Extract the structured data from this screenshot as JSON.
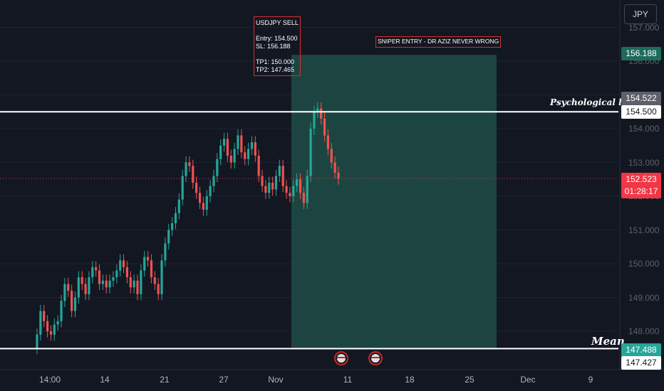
{
  "currency_label": "JPY",
  "y_ticks": [
    "157.000",
    "156.000",
    "155.000",
    "154.000",
    "153.000",
    "152.000",
    "151.000",
    "150.000",
    "149.000",
    "148.000"
  ],
  "x_ticks": [
    "14:00",
    "14",
    "21",
    "27",
    "Nov",
    "11",
    "18",
    "25",
    "Dec",
    "9"
  ],
  "annotations": {
    "signal_title": "USDJPY SELL",
    "entry": "Entry: 154.500",
    "sl": "SL: 156.188",
    "tp1": "TP1: 150.000",
    "tp2": "TP2: 147.465",
    "banner": "SNIPER ENTRY - DR AZIZ NEVER WRONG",
    "psych_label": "Psychological level",
    "mean_label": "Mean"
  },
  "price_labels": {
    "stop": "156.188",
    "high_mark": "154.522",
    "psych_level": "154.500",
    "current_price": "152.523",
    "countdown": "01:28:17",
    "mean_level": "147.488",
    "low_mark": "147.427"
  },
  "colors": {
    "up": "#26a69a",
    "down": "#ef5350",
    "background": "#131722",
    "position_zone": "#1e4d47",
    "level_line": "#ffffff",
    "current_price": "#f23645"
  },
  "chart_data": {
    "type": "candlestick",
    "symbol": "USDJPY",
    "ylim": [
      147.3,
      157.2
    ],
    "x_axis_labels": [
      "14:00",
      "14",
      "21",
      "27",
      "Nov",
      "11",
      "18",
      "25",
      "Dec",
      "9"
    ],
    "horizontal_levels": [
      {
        "name": "Psychological level",
        "value": 154.5
      },
      {
        "name": "Mean",
        "value": 147.488
      }
    ],
    "short_position": {
      "entry": 154.5,
      "stop": 156.188,
      "target": 147.465
    },
    "current_price": 152.523,
    "close_series": [
      147.9,
      148.6,
      148.3,
      148.0,
      147.9,
      148.2,
      148.3,
      148.9,
      149.4,
      149.2,
      148.6,
      149.0,
      149.6,
      149.4,
      149.1,
      149.6,
      149.9,
      149.8,
      149.4,
      149.5,
      149.3,
      149.5,
      149.6,
      149.8,
      150.1,
      149.9,
      149.6,
      149.3,
      149.5,
      149.1,
      149.8,
      150.2,
      150.1,
      149.6,
      149.4,
      149.1,
      150.1,
      150.6,
      151.0,
      151.2,
      151.5,
      151.9,
      152.6,
      153.0,
      152.9,
      152.4,
      152.1,
      151.8,
      151.6,
      152.0,
      152.3,
      152.6,
      153.1,
      153.5,
      153.7,
      153.2,
      153.0,
      153.4,
      153.8,
      153.3,
      153.1,
      153.4,
      153.6,
      153.2,
      152.6,
      152.3,
      152.1,
      152.4,
      152.2,
      152.6,
      152.9,
      152.3,
      152.1,
      152.0,
      152.3,
      152.5,
      152.1,
      151.8,
      152.6,
      154.0,
      154.5,
      154.6,
      154.3,
      153.8,
      153.4,
      153.0,
      152.7,
      152.52
    ]
  }
}
